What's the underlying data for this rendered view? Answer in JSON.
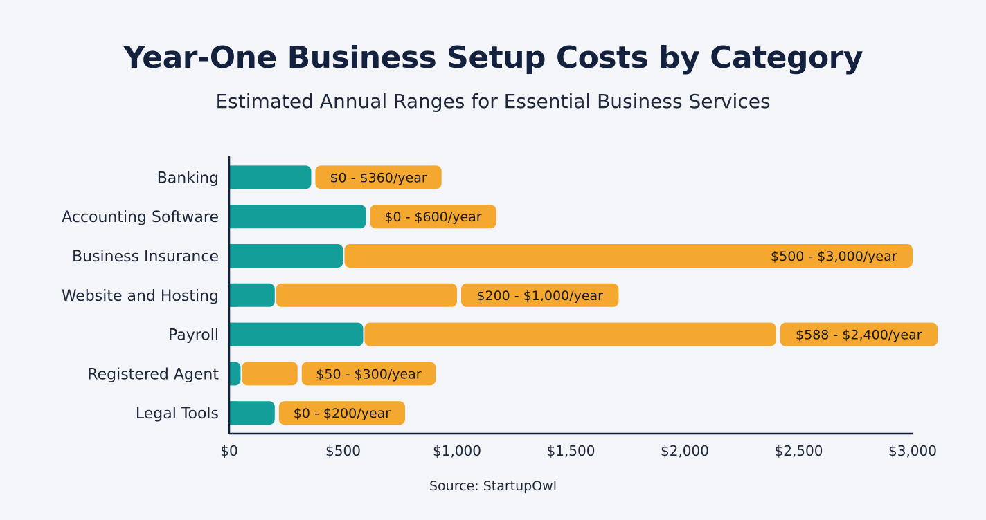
{
  "chart_data": {
    "type": "bar",
    "orientation": "horizontal",
    "stacked_range": true,
    "title": "Year-One Business Setup Costs by Category",
    "subtitle": "Estimated Annual Ranges for Essential Business Services",
    "source": "Source: StartupOwl",
    "xlabel": "",
    "ylabel": "",
    "xlim": [
      0,
      3000
    ],
    "x_ticks": [
      0,
      500,
      1000,
      1500,
      2000,
      2500,
      3000
    ],
    "x_tick_labels": [
      "$0",
      "$500",
      "$1,000",
      "$1,500",
      "$2,000",
      "$2,500",
      "$3,000"
    ],
    "grid": false,
    "categories": [
      "Banking",
      "Accounting Software",
      "Business Insurance",
      "Website and Hosting",
      "Payroll",
      "Registered Agent",
      "Legal Tools"
    ],
    "low": [
      0,
      0,
      500,
      200,
      588,
      50,
      0
    ],
    "high": [
      360,
      600,
      3000,
      1000,
      2400,
      300,
      200
    ],
    "data_labels": [
      "$0 - $360/year",
      "$0 - $600/year",
      "$500 - $3,000/year",
      "$200 - $1,000/year",
      "$588 - $2,400/year",
      "$50 - $300/year",
      "$0 - $200/year"
    ],
    "colors": {
      "minimum": "#139e99",
      "range": "#f5a82f",
      "axis": "#13213e",
      "text": "#1d2739"
    }
  }
}
